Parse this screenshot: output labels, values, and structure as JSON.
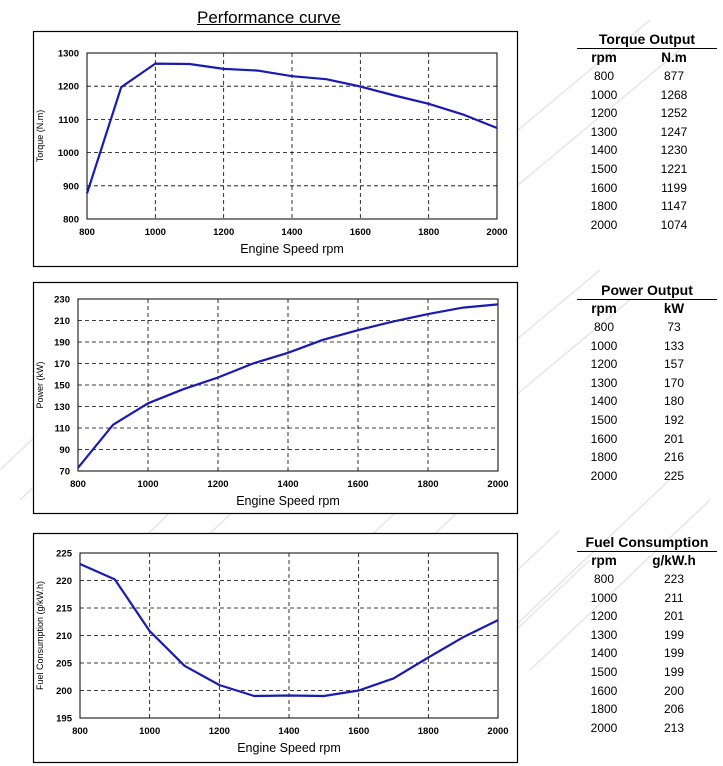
{
  "title": "Performance curve",
  "chart_data": [
    {
      "type": "line",
      "xlabel": "Engine Speed rpm",
      "ylabel": "Torque (N.m)",
      "xlim": [
        800,
        2000
      ],
      "ylim": [
        800,
        1300
      ],
      "xticks": [
        800,
        1000,
        1200,
        1400,
        1600,
        1800,
        2000
      ],
      "yticks": [
        800,
        900,
        1000,
        1100,
        1200,
        1300
      ],
      "grid": true,
      "x": [
        800,
        900,
        1000,
        1100,
        1200,
        1300,
        1400,
        1500,
        1600,
        1700,
        1800,
        1900,
        2000
      ],
      "values": [
        877,
        1197,
        1268,
        1267,
        1252,
        1247,
        1230,
        1221,
        1199,
        1172,
        1147,
        1115,
        1074
      ],
      "color": "#1a1ab4"
    },
    {
      "type": "line",
      "xlabel": "Engine Speed rpm",
      "ylabel": "Power (kW)",
      "xlim": [
        800,
        2000
      ],
      "ylim": [
        70,
        230
      ],
      "xticks": [
        800,
        1000,
        1200,
        1400,
        1600,
        1800,
        2000
      ],
      "yticks": [
        70,
        90,
        110,
        130,
        150,
        170,
        190,
        210,
        230
      ],
      "grid": true,
      "x": [
        800,
        900,
        1000,
        1100,
        1200,
        1300,
        1400,
        1500,
        1600,
        1700,
        1800,
        1900,
        2000
      ],
      "values": [
        73,
        113,
        133,
        146,
        157,
        170,
        180,
        192,
        201,
        209,
        216,
        222,
        225
      ],
      "color": "#1a1ab4"
    },
    {
      "type": "line",
      "xlabel": "Engine Speed rpm",
      "ylabel": "Fuel Consumption (g/kW.h)",
      "xlim": [
        800,
        2000
      ],
      "ylim": [
        195,
        225
      ],
      "xticks": [
        800,
        1000,
        1200,
        1400,
        1600,
        1800,
        2000
      ],
      "yticks": [
        195,
        200,
        205,
        210,
        215,
        220,
        225
      ],
      "grid": true,
      "x": [
        800,
        900,
        1000,
        1100,
        1200,
        1300,
        1400,
        1500,
        1600,
        1700,
        1800,
        1900,
        2000
      ],
      "values": [
        223,
        220.2,
        210.8,
        204.5,
        201,
        199,
        199.1,
        199,
        200,
        202.2,
        206,
        209.7,
        212.8
      ],
      "color": "#1a1ab4"
    }
  ],
  "tables": [
    {
      "title": "Torque Output",
      "headers": [
        "rpm",
        "N.m"
      ],
      "rows": [
        [
          "800",
          "877"
        ],
        [
          "1000",
          "1268"
        ],
        [
          "1200",
          "1252"
        ],
        [
          "1300",
          "1247"
        ],
        [
          "1400",
          "1230"
        ],
        [
          "1500",
          "1221"
        ],
        [
          "1600",
          "1199"
        ],
        [
          "1800",
          "1147"
        ],
        [
          "2000",
          "1074"
        ]
      ]
    },
    {
      "title": "Power Output",
      "headers": [
        "rpm",
        "kW"
      ],
      "rows": [
        [
          "800",
          "73"
        ],
        [
          "1000",
          "133"
        ],
        [
          "1200",
          "157"
        ],
        [
          "1300",
          "170"
        ],
        [
          "1400",
          "180"
        ],
        [
          "1500",
          "192"
        ],
        [
          "1600",
          "201"
        ],
        [
          "1800",
          "216"
        ],
        [
          "2000",
          "225"
        ]
      ]
    },
    {
      "title": "Fuel Consumption",
      "headers": [
        "rpm",
        "g/kW.h"
      ],
      "rows": [
        [
          "800",
          "223"
        ],
        [
          "1000",
          "211"
        ],
        [
          "1200",
          "201"
        ],
        [
          "1300",
          "199"
        ],
        [
          "1400",
          "199"
        ],
        [
          "1500",
          "199"
        ],
        [
          "1600",
          "200"
        ],
        [
          "1800",
          "206"
        ],
        [
          "2000",
          "213"
        ]
      ]
    }
  ]
}
